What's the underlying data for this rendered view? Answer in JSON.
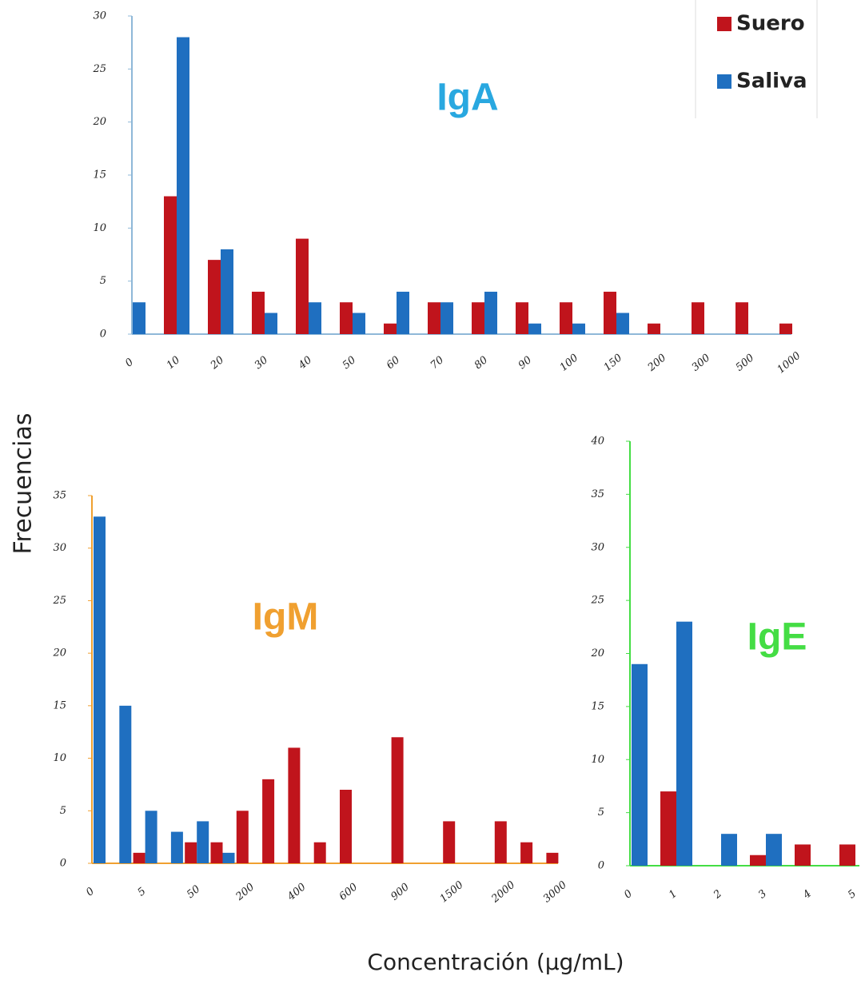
{
  "axis_labels": {
    "y": "Frecuencias",
    "x": "Concentración (µg/mL)"
  },
  "chart_data": [
    {
      "type": "bar",
      "title": "IgA",
      "title_color": "#29a8e0",
      "axis_color": "#8fb8d8",
      "legend": "upper right",
      "grid": false,
      "categories": [
        "0",
        "10",
        "20",
        "30",
        "40",
        "50",
        "60",
        "70",
        "80",
        "90",
        "100",
        "150",
        "200",
        "300",
        "500",
        "1000"
      ],
      "series": [
        {
          "name": "Suero",
          "color": "#c0141c",
          "values": [
            0,
            13,
            7,
            4,
            9,
            3,
            1,
            3,
            3,
            3,
            3,
            4,
            1,
            3,
            3,
            1
          ]
        },
        {
          "name": "Saliva",
          "color": "#1f6fc0",
          "values": [
            3,
            28,
            8,
            2,
            3,
            2,
            4,
            3,
            4,
            1,
            1,
            2,
            0,
            0,
            0,
            0
          ]
        }
      ],
      "ylim": [
        0,
        30
      ],
      "yticks": [
        0,
        5,
        10,
        15,
        20,
        25,
        30
      ]
    },
    {
      "type": "bar",
      "title": "IgM",
      "title_color": "#f0a030",
      "axis_color": "#f0a030",
      "grid": false,
      "categories": [
        "0",
        null,
        "5",
        null,
        "50",
        null,
        "200",
        null,
        "400",
        null,
        "600",
        null,
        "900",
        null,
        "1500",
        null,
        "2000",
        null,
        "3000"
      ],
      "series": [
        {
          "name": "Suero",
          "color": "#c0141c",
          "values": [
            0,
            0,
            1,
            0,
            2,
            2,
            5,
            8,
            11,
            2,
            7,
            0,
            12,
            0,
            4,
            0,
            4,
            2,
            1
          ]
        },
        {
          "name": "Saliva",
          "color": "#1f6fc0",
          "values": [
            33,
            15,
            5,
            3,
            4,
            1,
            0,
            0,
            0,
            0,
            0,
            0,
            0,
            0,
            0,
            0,
            0,
            0,
            0
          ]
        }
      ],
      "ylim": [
        0,
        35
      ],
      "yticks": [
        0,
        5,
        10,
        15,
        20,
        25,
        30,
        35
      ]
    },
    {
      "type": "bar",
      "title": "IgE",
      "title_color": "#44dd44",
      "axis_color": "#44dd44",
      "grid": false,
      "categories": [
        "0",
        "1",
        "2",
        "3",
        "4",
        "5"
      ],
      "series": [
        {
          "name": "Suero",
          "color": "#c0141c",
          "values": [
            0,
            7,
            0,
            1,
            2,
            2
          ]
        },
        {
          "name": "Saliva",
          "color": "#1f6fc0",
          "values": [
            19,
            23,
            3,
            3,
            0,
            0
          ]
        }
      ],
      "ylim": [
        0,
        40
      ],
      "yticks": [
        0,
        5,
        10,
        15,
        20,
        25,
        30,
        35,
        40
      ]
    }
  ]
}
